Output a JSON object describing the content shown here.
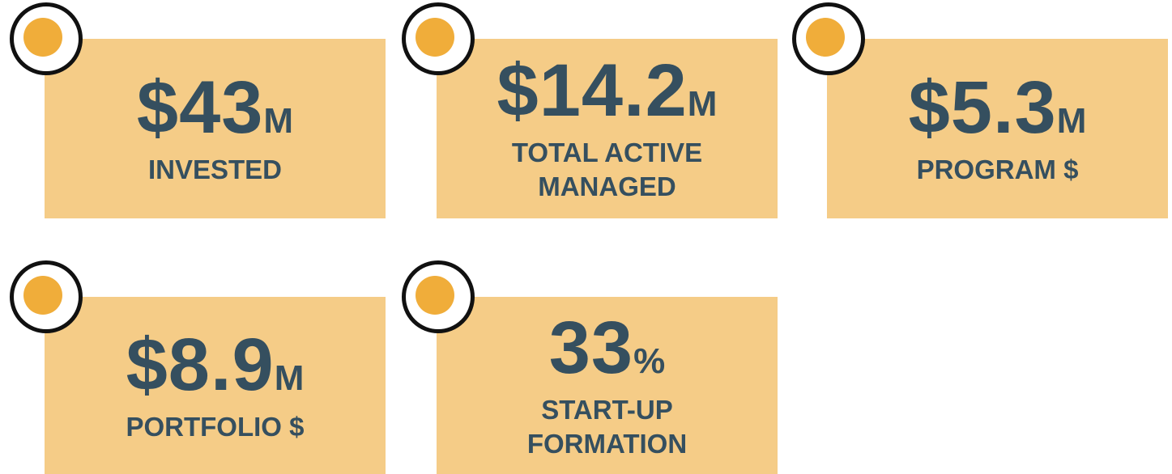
{
  "cards": [
    {
      "value": "$43",
      "unit": "M",
      "label_lines": [
        "INVESTED"
      ]
    },
    {
      "value": "$14.2",
      "unit": "M",
      "label_lines": [
        "TOTAL ACTIVE",
        "MANAGED"
      ]
    },
    {
      "value": "$5.3",
      "unit": "M",
      "label_lines": [
        "PROGRAM $"
      ]
    },
    {
      "value": "$8.9",
      "unit": "M",
      "label_lines": [
        "PORTFOLIO $"
      ]
    },
    {
      "value": "33",
      "unit": "%",
      "label_lines": [
        "START-UP",
        "FORMATION"
      ]
    }
  ]
}
